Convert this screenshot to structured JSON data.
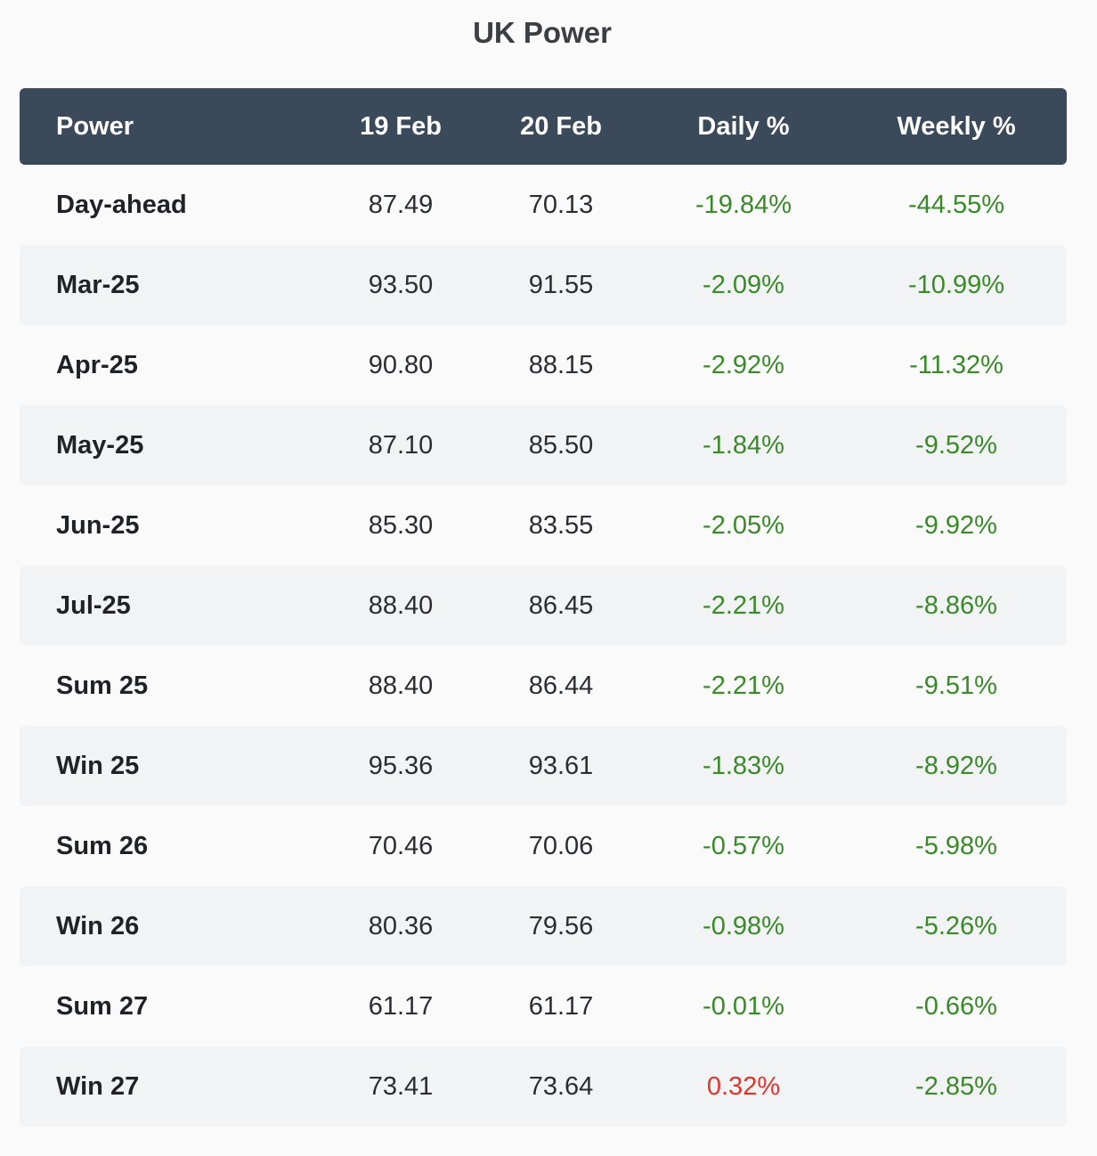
{
  "chart_data": {
    "type": "table",
    "title": "UK Power",
    "columns": [
      "Power",
      "19 Feb",
      "20 Feb",
      "Daily %",
      "Weekly %"
    ],
    "rows": [
      {
        "label": "Day-ahead",
        "feb19": "87.49",
        "feb20": "70.13",
        "daily": "-19.84%",
        "weekly": "-44.55%"
      },
      {
        "label": "Mar-25",
        "feb19": "93.50",
        "feb20": "91.55",
        "daily": "-2.09%",
        "weekly": "-10.99%"
      },
      {
        "label": "Apr-25",
        "feb19": "90.80",
        "feb20": "88.15",
        "daily": "-2.92%",
        "weekly": "-11.32%"
      },
      {
        "label": "May-25",
        "feb19": "87.10",
        "feb20": "85.50",
        "daily": "-1.84%",
        "weekly": "-9.52%"
      },
      {
        "label": "Jun-25",
        "feb19": "85.30",
        "feb20": "83.55",
        "daily": "-2.05%",
        "weekly": "-9.92%"
      },
      {
        "label": "Jul-25",
        "feb19": "88.40",
        "feb20": "86.45",
        "daily": "-2.21%",
        "weekly": "-8.86%"
      },
      {
        "label": "Sum 25",
        "feb19": "88.40",
        "feb20": "86.44",
        "daily": "-2.21%",
        "weekly": "-9.51%"
      },
      {
        "label": "Win 25",
        "feb19": "95.36",
        "feb20": "93.61",
        "daily": "-1.83%",
        "weekly": "-8.92%"
      },
      {
        "label": "Sum 26",
        "feb19": "70.46",
        "feb20": "70.06",
        "daily": "-0.57%",
        "weekly": "-5.98%"
      },
      {
        "label": "Win 26",
        "feb19": "80.36",
        "feb20": "79.56",
        "daily": "-0.98%",
        "weekly": "-5.26%"
      },
      {
        "label": "Sum 27",
        "feb19": "61.17",
        "feb20": "61.17",
        "daily": "-0.01%",
        "weekly": "-0.66%"
      },
      {
        "label": "Win 27",
        "feb19": "73.41",
        "feb20": "73.64",
        "daily": "0.32%",
        "weekly": "-2.85%"
      }
    ]
  },
  "colors": {
    "header_bg": "#3a4a5a",
    "negative": "#3a8a2a",
    "positive": "#e0352b",
    "alt_row": "#f2f3f5"
  }
}
